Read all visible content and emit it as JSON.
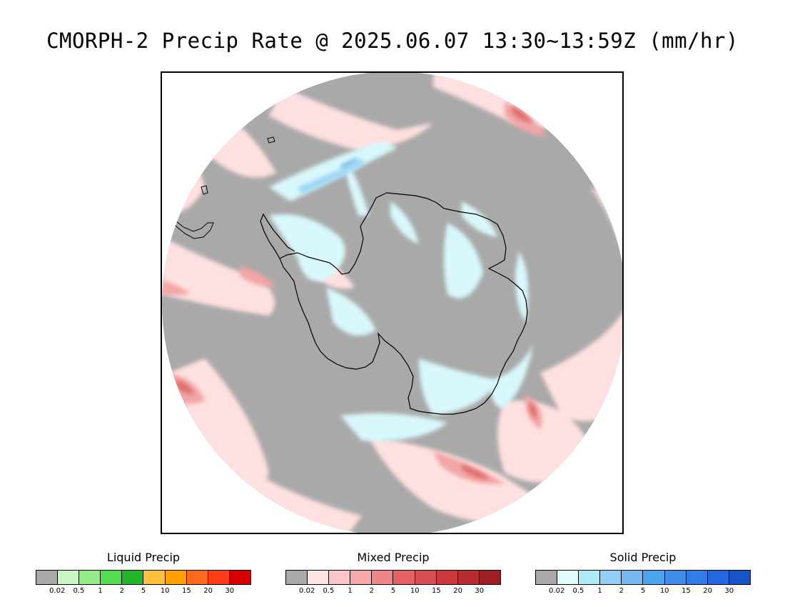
{
  "title": "CMORPH-2 Precip Rate @ 2025.06.07 13:30~13:59Z (mm/hr)",
  "map": {
    "projection": "south-polar-stereographic",
    "background_color": "#a9a9a9",
    "outside_color": "#ffffff",
    "coastline_color": "#000000",
    "mixed_light_color": "#ffe0e0",
    "mixed_medium_color": "#f2a6a6",
    "mixed_heavy_color": "#e07070",
    "solid_light_color": "#d8f8fc",
    "solid_medium_color": "#9fd8f5",
    "solid_heavy_color": "#6aaee0"
  },
  "legends": [
    {
      "title": "Liquid Precip",
      "colors": [
        "#a9a9a9",
        "#c8f7c0",
        "#93ec88",
        "#52dc4e",
        "#23b52a",
        "#ffc040",
        "#ffa000",
        "#ff6a1a",
        "#ff3c14",
        "#d70000"
      ],
      "ticks": [
        "0.02",
        "0.5",
        "1",
        "2",
        "5",
        "10",
        "15",
        "20",
        "30"
      ]
    },
    {
      "title": "Mixed Precip",
      "colors": [
        "#a9a9a9",
        "#ffe4e4",
        "#fcc6c8",
        "#f7a8aa",
        "#ef8586",
        "#e46062",
        "#d84d50",
        "#cc3a3e",
        "#b82c30",
        "#a01e22"
      ],
      "ticks": [
        "0.02",
        "0.5",
        "1",
        "2",
        "5",
        "10",
        "15",
        "20",
        "30"
      ]
    },
    {
      "title": "Solid Precip",
      "colors": [
        "#a9a9a9",
        "#e0fcfc",
        "#aeeaf7",
        "#92cff7",
        "#76b9f2",
        "#4aa4ef",
        "#3f8fea",
        "#2f7ee8",
        "#2068e0",
        "#1555c8"
      ],
      "ticks": [
        "0.02",
        "0.5",
        "1",
        "2",
        "5",
        "10",
        "15",
        "20",
        "30"
      ]
    }
  ]
}
